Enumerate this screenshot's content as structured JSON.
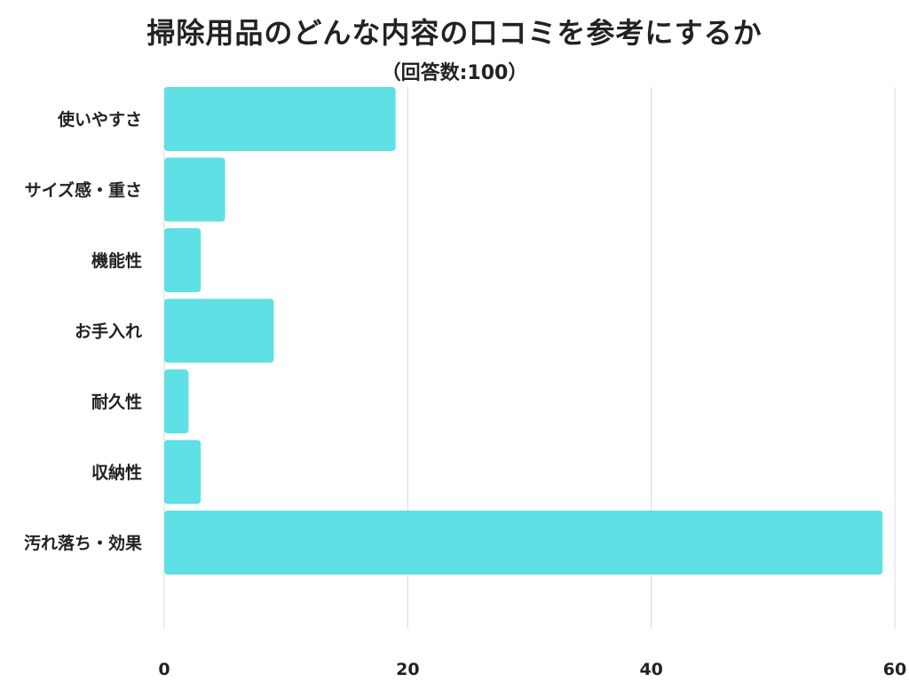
{
  "title": "掃除用品のどんな内容の口コミを参考にするか",
  "subtitle": "（回答数:100）",
  "chart_data": {
    "type": "bar",
    "orientation": "horizontal",
    "title": "掃除用品のどんな内容の口コミを参考にするか",
    "subtitle": "（回答数:100）",
    "categories": [
      "使いやすさ",
      "サイズ感・重さ",
      "機能性",
      "お手入れ",
      "耐久性",
      "収納性",
      "汚れ落ち・効果"
    ],
    "values": [
      19,
      5,
      3,
      9,
      2,
      3,
      59
    ],
    "xlim": [
      0,
      60
    ],
    "xticks": [
      0,
      20,
      40,
      60
    ],
    "xlabel": "",
    "ylabel": "",
    "grid": true,
    "bar_color": "#5ee0e4",
    "grid_color": "#d9d9d9"
  }
}
